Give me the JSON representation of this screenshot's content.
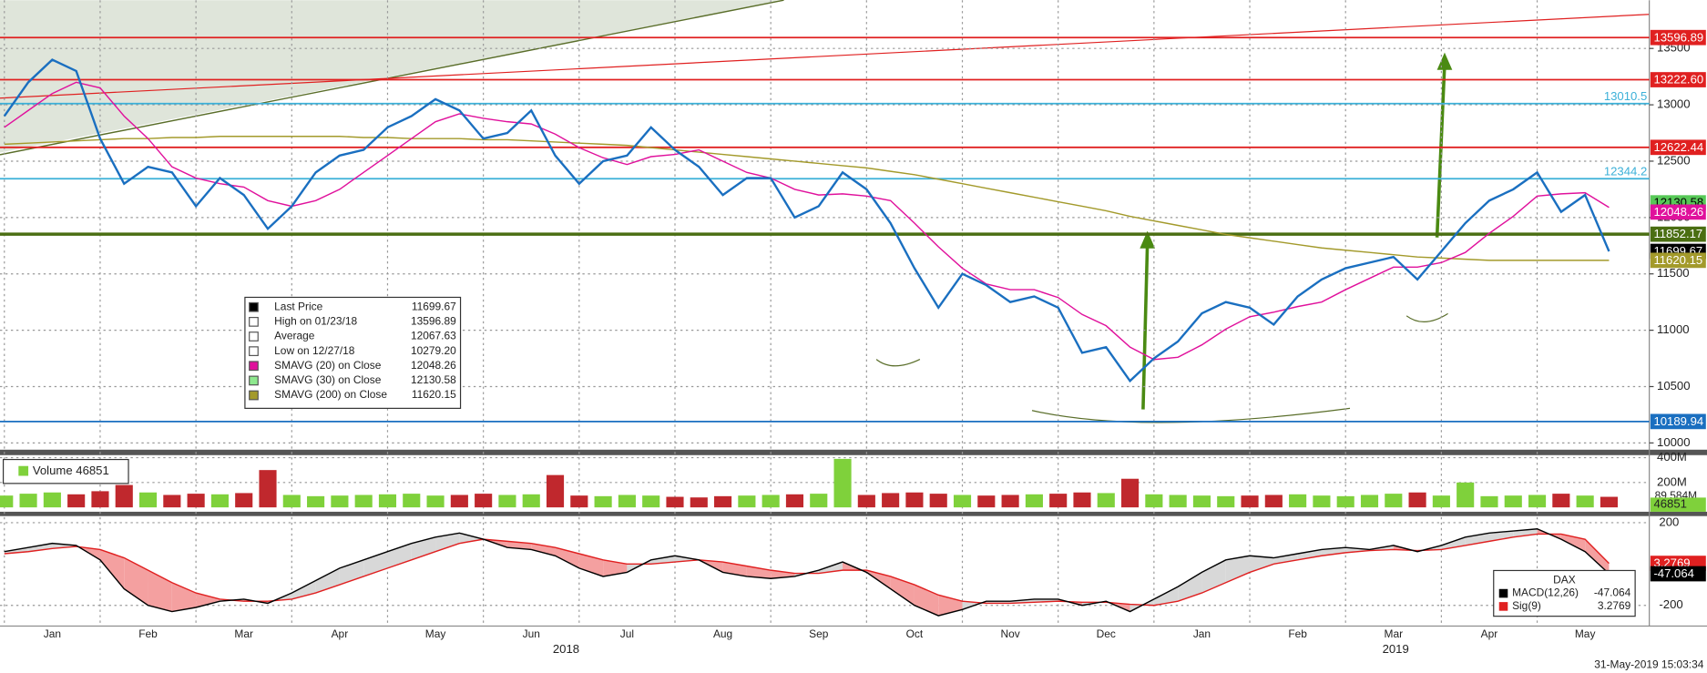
{
  "chart_data": {
    "type": "line",
    "categories": [
      null,
      null,
      "Jan",
      null,
      null,
      null,
      "Feb",
      null,
      null,
      null,
      "Mar",
      null,
      null,
      null,
      "Apr",
      null,
      null,
      null,
      "May",
      null,
      null,
      null,
      "Jun",
      null,
      null,
      null,
      "Jul",
      null,
      null,
      null,
      "Aug",
      null,
      null,
      null,
      "Sep",
      null,
      null,
      null,
      "Oct",
      null,
      null,
      null,
      "Nov",
      null,
      null,
      null,
      "Dec",
      null,
      null,
      null,
      "Jan",
      null,
      null,
      null,
      "Feb",
      null,
      null,
      null,
      "Mar",
      null,
      null,
      null,
      "Apr",
      null,
      null,
      null,
      "May",
      null
    ],
    "years": [
      "2018",
      "2019"
    ],
    "timestamp": "31-May-2019 15:03:34",
    "ylim": [
      9940,
      13880
    ],
    "yticks": [
      10000,
      10500,
      11000,
      11500,
      12000,
      12500,
      13000,
      13500
    ],
    "grid": true,
    "series": [
      {
        "name": "Last Price",
        "color": "#1a6fc0",
        "values": [
          12900,
          13200,
          13400,
          13300,
          12700,
          12300,
          12450,
          12400,
          12100,
          12350,
          12200,
          11900,
          12100,
          12400,
          12550,
          12600,
          12800,
          12900,
          13050,
          12950,
          12700,
          12750,
          12950,
          12550,
          12300,
          12500,
          12550,
          12800,
          12600,
          12450,
          12200,
          12350,
          12350,
          12000,
          12100,
          12400,
          12250,
          11950,
          11550,
          11200,
          11500,
          11400,
          11250,
          11300,
          11200,
          10800,
          10850,
          10550,
          10750,
          10900,
          11150,
          11250,
          11200,
          11050,
          11300,
          11450,
          11550,
          11600,
          11650,
          11450,
          11700,
          11950,
          12150,
          12250,
          12400,
          12050,
          12200,
          11700
        ]
      },
      {
        "name": "SMAVG (20)  on Close",
        "color": "#e0119c",
        "values": [
          12800,
          12950,
          13100,
          13200,
          13150,
          12900,
          12700,
          12450,
          12350,
          12300,
          12270,
          12150,
          12100,
          12150,
          12250,
          12400,
          12550,
          12700,
          12850,
          12920,
          12880,
          12850,
          12830,
          12740,
          12620,
          12530,
          12470,
          12540,
          12560,
          12600,
          12500,
          12400,
          12350,
          12250,
          12200,
          12210,
          12190,
          12150,
          11950,
          11740,
          11550,
          11410,
          11360,
          11360,
          11290,
          11140,
          11040,
          10850,
          10740,
          10760,
          10870,
          11010,
          11120,
          11160,
          11210,
          11250,
          11360,
          11460,
          11560,
          11560,
          11600,
          11690,
          11860,
          12010,
          12190,
          12210,
          12220,
          12090
        ]
      },
      {
        "name": "SMAVG (200)  on Close",
        "color": "#a39a2b",
        "values": [
          12650,
          12660,
          12670,
          12680,
          12690,
          12700,
          12700,
          12710,
          12710,
          12720,
          12720,
          12720,
          12720,
          12720,
          12720,
          12710,
          12710,
          12700,
          12700,
          12700,
          12690,
          12690,
          12680,
          12670,
          12660,
          12650,
          12640,
          12620,
          12600,
          12580,
          12560,
          12540,
          12520,
          12500,
          12480,
          12460,
          12440,
          12410,
          12380,
          12340,
          12300,
          12260,
          12220,
          12180,
          12140,
          12100,
          12060,
          12010,
          11970,
          11930,
          11890,
          11850,
          11820,
          11790,
          11760,
          11730,
          11710,
          11690,
          11670,
          11650,
          11640,
          11630,
          11620,
          11620,
          11620,
          11620,
          11620,
          11620
        ]
      }
    ],
    "legend": [
      {
        "name": "Last Price",
        "value": "11699.67",
        "color": "#000000"
      },
      {
        "name": "High on 01/23/18",
        "value": "13596.89",
        "color": "#ffffff"
      },
      {
        "name": "Average",
        "value": "12067.63",
        "color": "#ffffff"
      },
      {
        "name": "Low on 12/27/18",
        "value": "10279.20",
        "color": "#ffffff"
      },
      {
        "name": "SMAVG (20)  on Close",
        "value": "12048.26",
        "color": "#e0119c"
      },
      {
        "name": "SMAVG (30)  on Close",
        "value": "12130.58",
        "color": "#8ee88e"
      },
      {
        "name": "SMAVG (200)  on Close",
        "value": "11620.15",
        "color": "#a39a2b"
      }
    ],
    "levels": [
      {
        "value": 13596.89,
        "color": "#e02020",
        "line": true,
        "box": true
      },
      {
        "value": 13222.6,
        "label": "13222.60",
        "color": "#e02020",
        "line": true,
        "box": true
      },
      {
        "value": 13010.5,
        "color": "#3bb0d8",
        "line": true,
        "box": false
      },
      {
        "value": 12622.44,
        "color": "#e02020",
        "line": true,
        "box": true
      },
      {
        "value": 12344.2,
        "color": "#3bb0d8",
        "line": true,
        "box": false
      },
      {
        "value": 12130.58,
        "color": "#57c957",
        "line": false,
        "box": true
      },
      {
        "value": 12048.26,
        "color": "#e0119c",
        "line": false,
        "box": true
      },
      {
        "value": 11852.17,
        "color": "#4a6e12",
        "line": true,
        "box": true
      },
      {
        "value": 11699.67,
        "color": "#000000",
        "line": false,
        "box": true
      },
      {
        "value": 11620.15,
        "color": "#a39a2b",
        "line": false,
        "box": true
      },
      {
        "value": 10189.94,
        "color": "#1a6fc0",
        "line": true,
        "box": true
      }
    ],
    "volume": {
      "name": "Volume 46851",
      "last": 46851,
      "avg": 89.584,
      "avg_label": "89.584M",
      "up_color": "#7fd13b",
      "down_color": "#c0282d",
      "ylim": [
        0,
        420
      ],
      "yticks": [
        {
          "value": 200,
          "label": "200M"
        },
        {
          "value": 400,
          "label": "400M"
        }
      ],
      "values": [
        95,
        110,
        120,
        105,
        130,
        180,
        120,
        100,
        110,
        105,
        115,
        300,
        100,
        90,
        95,
        100,
        105,
        110,
        95,
        100,
        110,
        100,
        105,
        260,
        95,
        90,
        100,
        95,
        85,
        80,
        90,
        95,
        100,
        105,
        110,
        390,
        100,
        115,
        120,
        110,
        100,
        95,
        100,
        105,
        110,
        120,
        115,
        230,
        105,
        100,
        95,
        90,
        95,
        100,
        105,
        95,
        90,
        100,
        110,
        120,
        95,
        200,
        90,
        95,
        100,
        110,
        95,
        85
      ]
    },
    "macd": {
      "title": "DAX",
      "ylim": [
        -300,
        232
      ],
      "yticks": [
        -200,
        200
      ],
      "series": [
        {
          "name": "MACD(12,26)",
          "value": "-47.064",
          "last": -47.064,
          "color": "#000000",
          "values": [
            60,
            80,
            100,
            90,
            20,
            -120,
            -200,
            -230,
            -210,
            -180,
            -170,
            -190,
            -140,
            -80,
            -20,
            20,
            60,
            100,
            130,
            150,
            120,
            80,
            70,
            40,
            -20,
            -60,
            -40,
            20,
            40,
            20,
            -40,
            -60,
            -70,
            -60,
            -30,
            10,
            -40,
            -120,
            -200,
            -250,
            -220,
            -180,
            -180,
            -170,
            -170,
            -200,
            -180,
            -230,
            -170,
            -110,
            -40,
            20,
            40,
            30,
            50,
            70,
            80,
            70,
            90,
            60,
            90,
            130,
            150,
            160,
            170,
            120,
            60,
            -47.064
          ]
        },
        {
          "name": "Sig(9)",
          "value": "3.2769",
          "last": 3.2769,
          "color": "#e02020",
          "values": [
            50,
            60,
            75,
            85,
            70,
            30,
            -30,
            -90,
            -140,
            -170,
            -180,
            -180,
            -170,
            -140,
            -100,
            -60,
            -20,
            20,
            60,
            100,
            120,
            110,
            100,
            80,
            50,
            20,
            0,
            0,
            10,
            20,
            10,
            -10,
            -30,
            -45,
            -45,
            -30,
            -30,
            -60,
            -100,
            -150,
            -180,
            -190,
            -190,
            -185,
            -180,
            -185,
            -185,
            -195,
            -200,
            -180,
            -140,
            -90,
            -40,
            0,
            20,
            40,
            55,
            65,
            70,
            65,
            70,
            90,
            110,
            130,
            145,
            145,
            120,
            3.2769
          ]
        }
      ]
    }
  }
}
